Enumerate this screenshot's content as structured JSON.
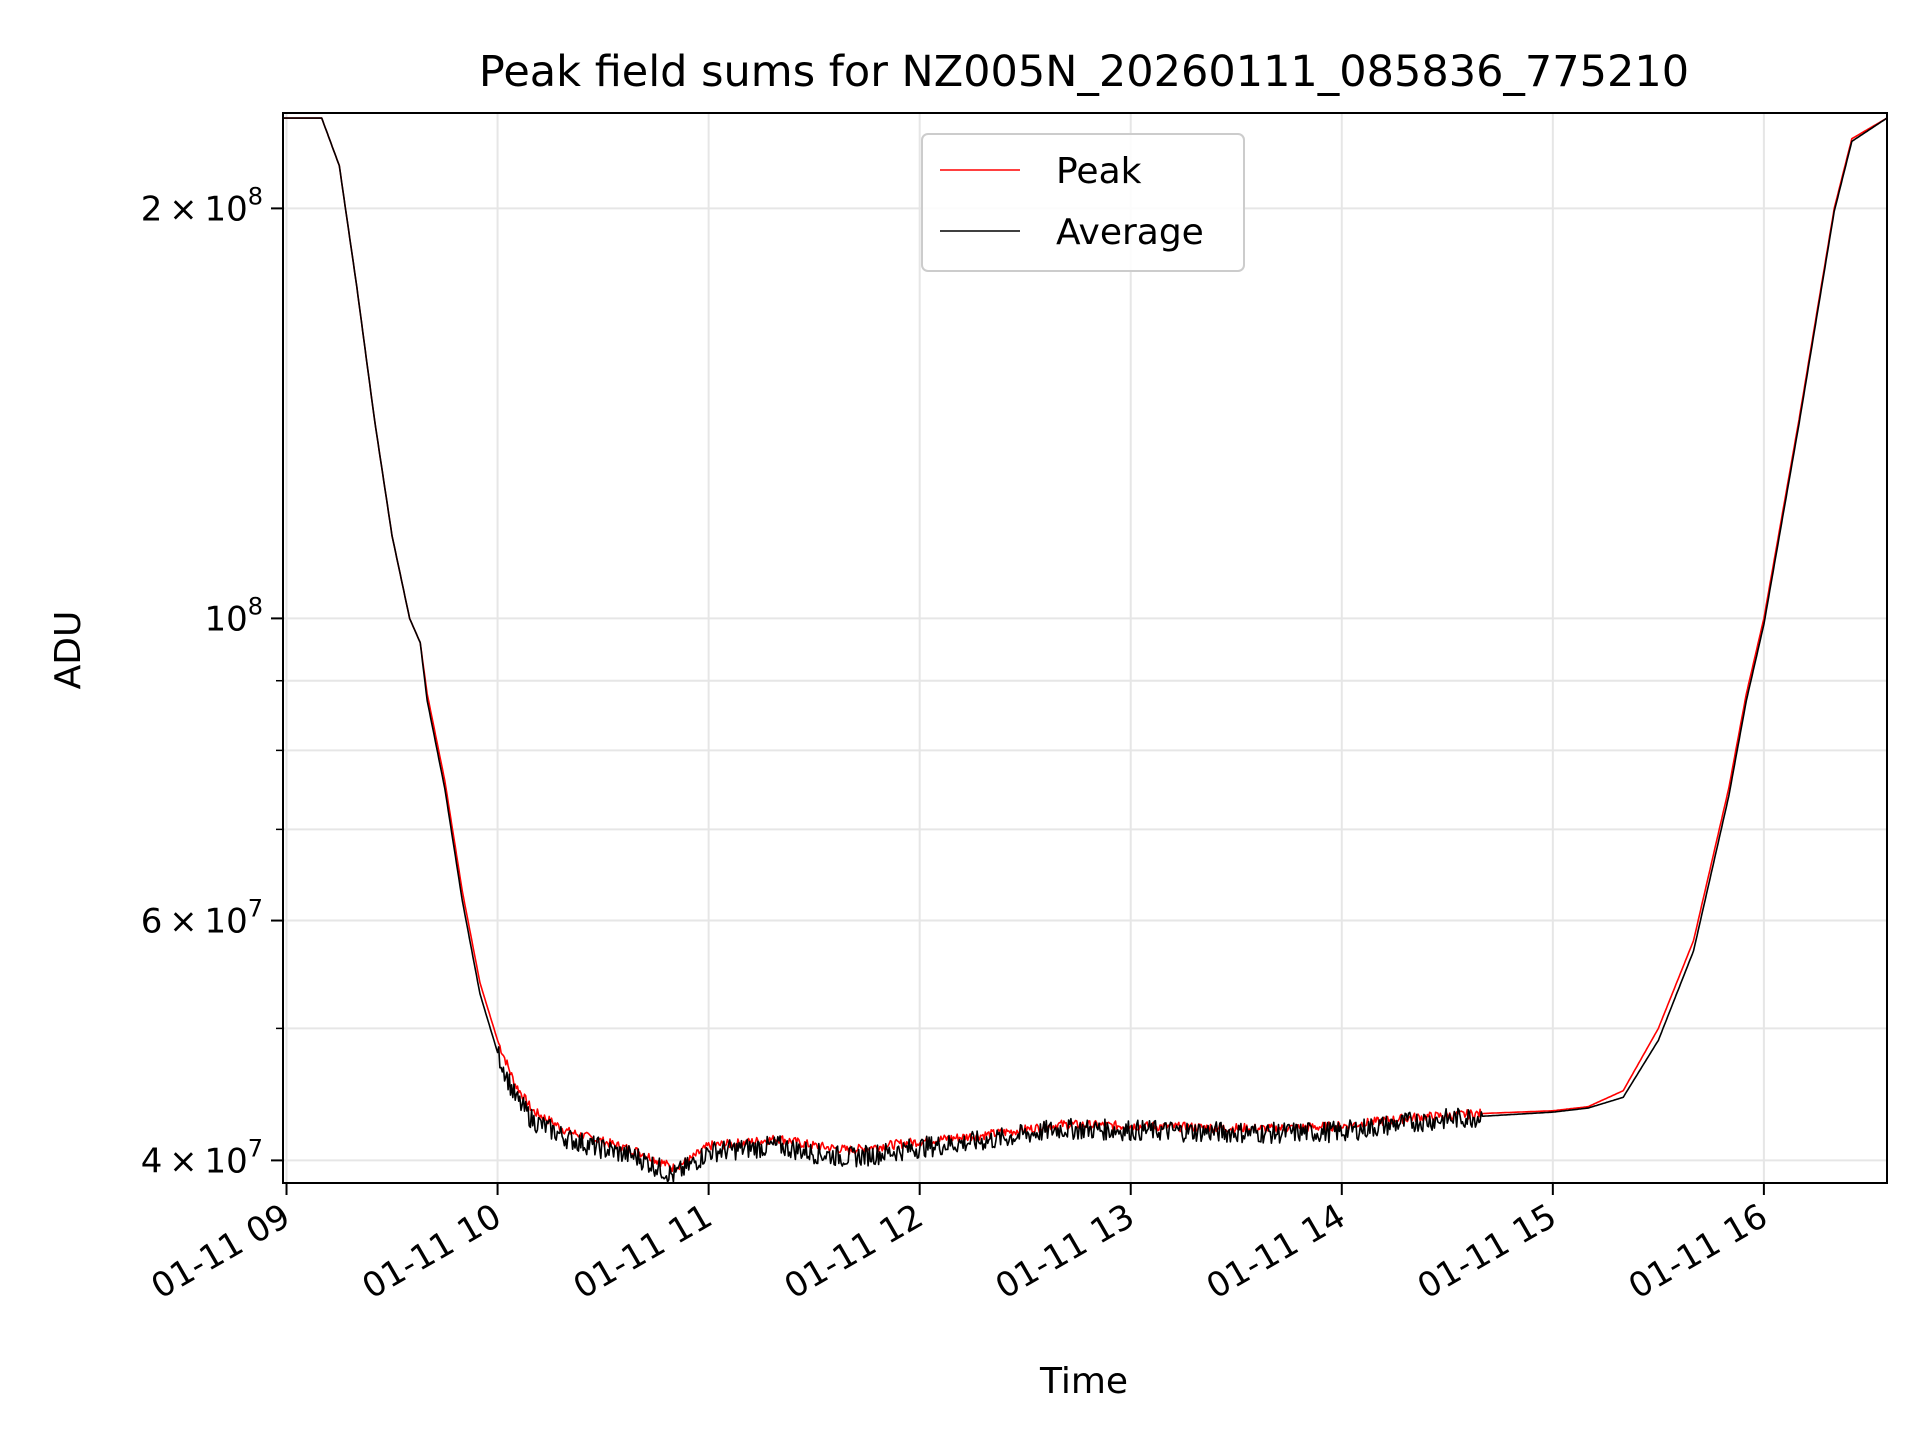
{
  "chart_data": {
    "type": "line",
    "title": "Peak field sums for NZ005N_20260111_085836_775210",
    "xlabel": "Time",
    "ylabel": "ADU",
    "xlim": [
      "01-11 08:59",
      "01-11 16:35"
    ],
    "ylim": [
      38500000,
      235000000
    ],
    "yscale": "log",
    "grid": true,
    "legend": "upper center",
    "x_ticks": [
      "01-11 09",
      "01-11 10",
      "01-11 11",
      "01-11 12",
      "01-11 13",
      "01-11 14",
      "01-11 15",
      "01-11 16"
    ],
    "y_ticks": [
      {
        "value": 40000000,
        "base": "4",
        "exp": "7"
      },
      {
        "value": 60000000,
        "base": "6",
        "exp": "7"
      },
      {
        "value": 100000000,
        "base": "10",
        "exp": "8"
      },
      {
        "value": 200000000,
        "base": "2",
        "exp": "8"
      }
    ],
    "series": [
      {
        "name": "Peak",
        "color": "#ff0000",
        "x": [
          "01-11 08:59",
          "01-11 09:10",
          "01-11 09:15",
          "01-11 09:20",
          "01-11 09:25",
          "01-11 09:30",
          "01-11 09:35",
          "01-11 09:38",
          "01-11 09:40",
          "01-11 09:45",
          "01-11 09:50",
          "01-11 09:55",
          "01-11 10:00",
          "01-11 10:05",
          "01-11 10:10",
          "01-11 10:20",
          "01-11 10:30",
          "01-11 10:40",
          "01-11 10:50",
          "01-11 10:55",
          "01-11 11:00",
          "01-11 11:10",
          "01-11 11:20",
          "01-11 11:30",
          "01-11 11:40",
          "01-11 11:50",
          "01-11 12:00",
          "01-11 12:20",
          "01-11 12:40",
          "01-11 13:00",
          "01-11 13:20",
          "01-11 13:40",
          "01-11 14:00",
          "01-11 14:20",
          "01-11 14:40",
          "01-11 15:00",
          "01-11 15:10",
          "01-11 15:20",
          "01-11 15:30",
          "01-11 15:40",
          "01-11 15:50",
          "01-11 15:55",
          "01-11 16:00",
          "01-11 16:10",
          "01-11 16:20",
          "01-11 16:25",
          "01-11 16:35"
        ],
        "y": [
          233000000,
          233000000,
          215000000,
          175000000,
          140000000,
          115000000,
          100000000,
          96000000,
          88000000,
          76000000,
          63000000,
          54000000,
          49000000,
          45500000,
          43500000,
          42000000,
          41300000,
          40600000,
          39500000,
          40100000,
          41000000,
          41200000,
          41500000,
          41000000,
          40700000,
          41000000,
          41300000,
          41800000,
          42500000,
          42400000,
          42300000,
          42200000,
          42400000,
          43000000,
          43300000,
          43500000,
          43800000,
          45000000,
          50000000,
          58000000,
          75000000,
          88000000,
          100000000,
          140000000,
          200000000,
          225000000,
          233000000
        ]
      },
      {
        "name": "Average",
        "color": "#000000",
        "x": [
          "01-11 08:59",
          "01-11 09:10",
          "01-11 09:15",
          "01-11 09:20",
          "01-11 09:25",
          "01-11 09:30",
          "01-11 09:35",
          "01-11 09:38",
          "01-11 09:40",
          "01-11 09:45",
          "01-11 09:50",
          "01-11 09:55",
          "01-11 10:00",
          "01-11 10:05",
          "01-11 10:10",
          "01-11 10:20",
          "01-11 10:30",
          "01-11 10:40",
          "01-11 10:50",
          "01-11 10:55",
          "01-11 11:00",
          "01-11 11:10",
          "01-11 11:20",
          "01-11 11:30",
          "01-11 11:40",
          "01-11 11:50",
          "01-11 12:00",
          "01-11 12:20",
          "01-11 12:40",
          "01-11 13:00",
          "01-11 13:20",
          "01-11 13:40",
          "01-11 14:00",
          "01-11 14:20",
          "01-11 14:40",
          "01-11 15:00",
          "01-11 15:10",
          "01-11 15:20",
          "01-11 15:30",
          "01-11 15:40",
          "01-11 15:50",
          "01-11 15:55",
          "01-11 16:00",
          "01-11 16:10",
          "01-11 16:20",
          "01-11 16:25",
          "01-11 16:35"
        ],
        "y": [
          233000000,
          233000000,
          215000000,
          175000000,
          140000000,
          115000000,
          100000000,
          96000000,
          87000000,
          75000000,
          62000000,
          53000000,
          48000000,
          44500000,
          42800000,
          41500000,
          40800000,
          40200000,
          39000000,
          39700000,
          40600000,
          40800000,
          41000000,
          40500000,
          40200000,
          40500000,
          40900000,
          41400000,
          42200000,
          42100000,
          42000000,
          41900000,
          42000000,
          42700000,
          43100000,
          43400000,
          43700000,
          44500000,
          49000000,
          57000000,
          74000000,
          87000000,
          99000000,
          139000000,
          199000000,
          224000000,
          233000000
        ]
      }
    ]
  }
}
